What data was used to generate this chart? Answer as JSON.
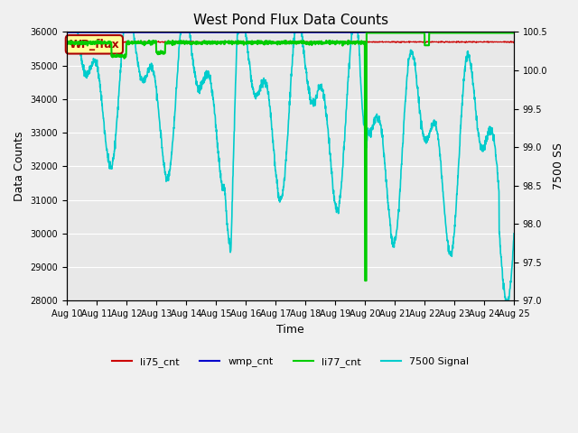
{
  "title": "West Pond Flux Data Counts",
  "xlabel": "Time",
  "ylabel_left": "Data Counts",
  "ylabel_right": "7500 SS",
  "ylim_left": [
    28000,
    36000
  ],
  "ylim_right": [
    97.0,
    100.5
  ],
  "fig_facecolor": "#f0f0f0",
  "plot_facecolor": "#e8e8e8",
  "annotation_box_text": "WP_flux",
  "annotation_box_facecolor": "#ffff99",
  "annotation_box_edgecolor": "#aa0000",
  "annotation_text_color": "#aa0000",
  "colors": {
    "li75_cnt": "#cc0000",
    "wmp_cnt": "#0000cc",
    "li77_cnt": "#00cc00",
    "signal7500": "#00cccc"
  },
  "xtick_labels": [
    "Aug 10",
    "Aug 11",
    "Aug 12",
    "Aug 13",
    "Aug 14",
    "Aug 15",
    "Aug 16",
    "Aug 17",
    "Aug 18",
    "Aug 19",
    "Aug 20",
    "Aug 21",
    "Aug 22",
    "Aug 23",
    "Aug 24",
    "Aug 25"
  ],
  "yticks_left": [
    28000,
    29000,
    30000,
    31000,
    32000,
    33000,
    34000,
    35000,
    36000
  ],
  "yticks_right": [
    97.0,
    97.5,
    98.0,
    98.5,
    99.0,
    99.5,
    100.0,
    100.5
  ],
  "grid_color": "#ffffff",
  "title_fontsize": 11,
  "axis_fontsize": 9,
  "tick_fontsize": 7
}
